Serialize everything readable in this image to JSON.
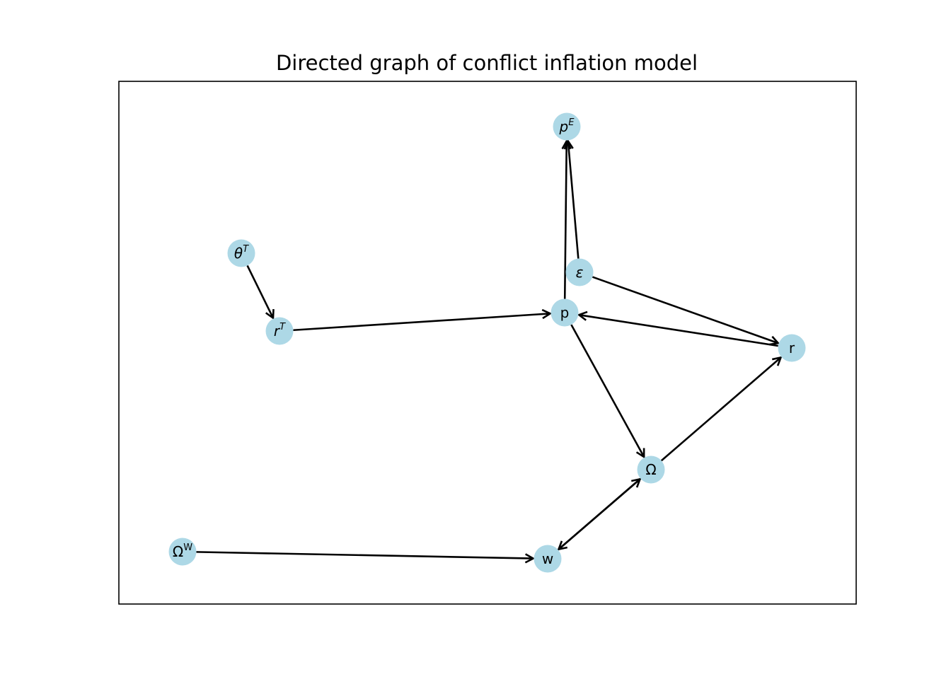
{
  "title": "Directed graph of conflict inflation model",
  "colors": {
    "node_fill": "#add8e6",
    "edge": "#000000",
    "frame": "#000000",
    "background": "#ffffff"
  },
  "nodes": [
    {
      "id": "pE",
      "base": "p",
      "sup": "E",
      "italic": true
    },
    {
      "id": "thetaT",
      "base": "θ",
      "sup": "T",
      "italic": true
    },
    {
      "id": "epsilon",
      "base": "ε",
      "sup": "",
      "italic": true
    },
    {
      "id": "rT",
      "base": "r",
      "sup": "T",
      "italic": true
    },
    {
      "id": "p",
      "base": "p",
      "sup": "",
      "italic": false
    },
    {
      "id": "r",
      "base": "r",
      "sup": "",
      "italic": false
    },
    {
      "id": "Omega",
      "base": "Ω",
      "sup": "",
      "italic": false
    },
    {
      "id": "OmegaW",
      "base": "Ω",
      "sup": "W",
      "italic": false
    },
    {
      "id": "w",
      "base": "w",
      "sup": "",
      "italic": false
    }
  ],
  "edges": [
    {
      "from": "thetaT",
      "to": "rT"
    },
    {
      "from": "rT",
      "to": "p"
    },
    {
      "from": "p",
      "to": "pE"
    },
    {
      "from": "epsilon",
      "to": "pE"
    },
    {
      "from": "epsilon",
      "to": "r"
    },
    {
      "from": "r",
      "to": "p"
    },
    {
      "from": "p",
      "to": "Omega"
    },
    {
      "from": "Omega",
      "to": "r"
    },
    {
      "from": "Omega",
      "to": "w"
    },
    {
      "from": "w",
      "to": "Omega"
    },
    {
      "from": "OmegaW",
      "to": "w"
    }
  ]
}
